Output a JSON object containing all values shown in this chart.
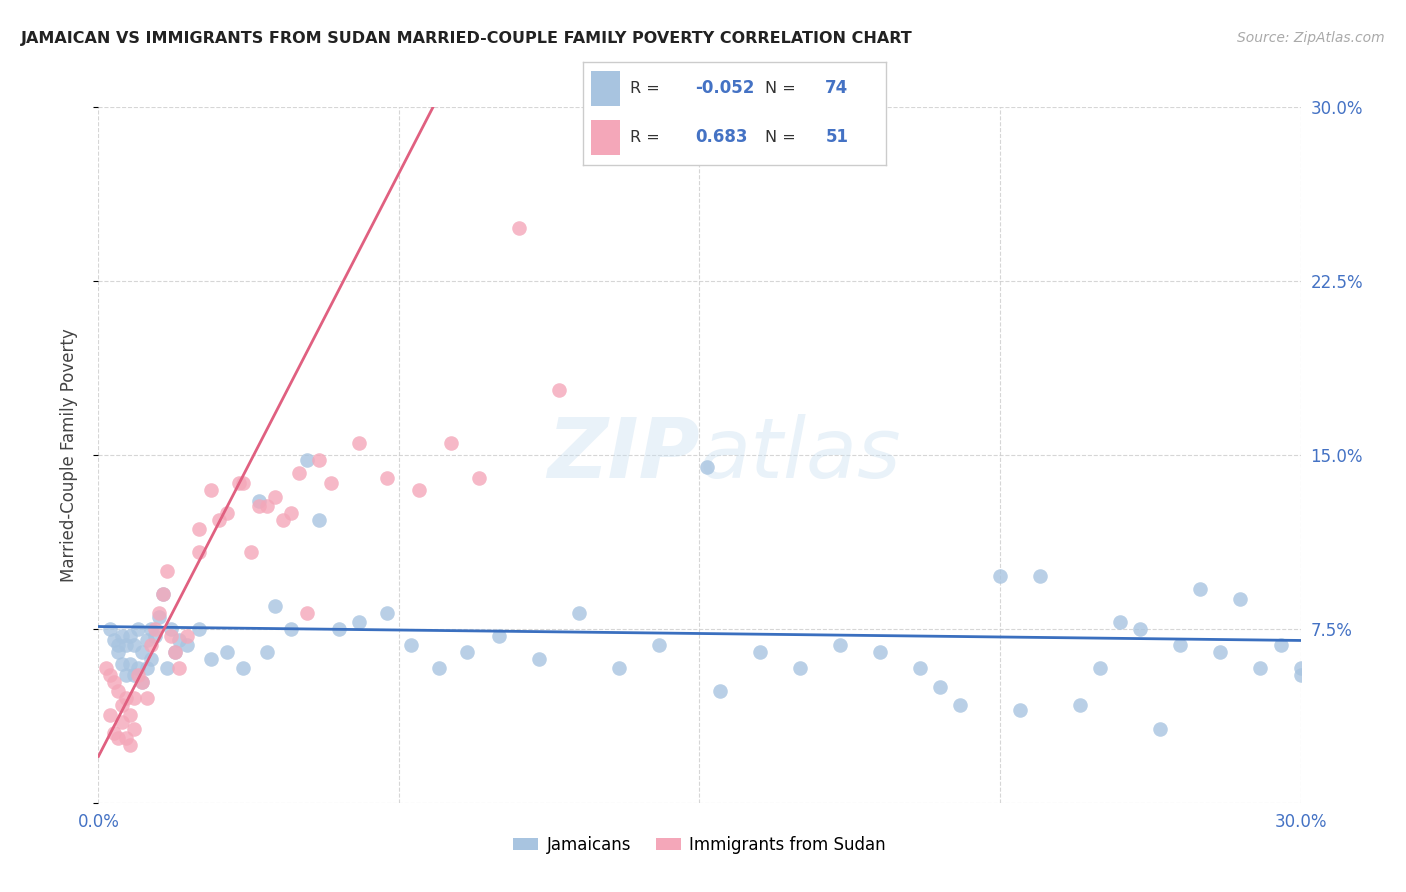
{
  "title": "JAMAICAN VS IMMIGRANTS FROM SUDAN MARRIED-COUPLE FAMILY POVERTY CORRELATION CHART",
  "source": "Source: ZipAtlas.com",
  "ylabel": "Married-Couple Family Poverty",
  "xlim": [
    0.0,
    0.3
  ],
  "ylim": [
    0.0,
    0.3
  ],
  "blue_R": -0.052,
  "blue_N": 74,
  "pink_R": 0.683,
  "pink_N": 51,
  "blue_color": "#a8c4e0",
  "pink_color": "#f4a7b9",
  "blue_line_color": "#3a6fbf",
  "pink_line_color": "#e06080",
  "axis_label_color": "#4472c4",
  "watermark_zip": "ZIP",
  "watermark_atlas": "atlas",
  "legend_label_blue": "Jamaicans",
  "legend_label_pink": "Immigrants from Sudan",
  "blue_x": [
    0.003,
    0.004,
    0.005,
    0.005,
    0.006,
    0.006,
    0.007,
    0.007,
    0.008,
    0.008,
    0.009,
    0.009,
    0.01,
    0.01,
    0.011,
    0.011,
    0.012,
    0.012,
    0.013,
    0.013,
    0.014,
    0.015,
    0.016,
    0.017,
    0.018,
    0.019,
    0.02,
    0.022,
    0.025,
    0.028,
    0.032,
    0.036,
    0.04,
    0.044,
    0.048,
    0.055,
    0.06,
    0.065,
    0.072,
    0.078,
    0.085,
    0.092,
    0.1,
    0.11,
    0.12,
    0.13,
    0.14,
    0.155,
    0.165,
    0.175,
    0.185,
    0.195,
    0.205,
    0.215,
    0.225,
    0.235,
    0.245,
    0.255,
    0.265,
    0.275,
    0.285,
    0.295,
    0.3,
    0.152,
    0.21,
    0.23,
    0.25,
    0.26,
    0.27,
    0.28,
    0.29,
    0.3,
    0.042,
    0.052
  ],
  "blue_y": [
    0.075,
    0.07,
    0.068,
    0.065,
    0.072,
    0.06,
    0.068,
    0.055,
    0.072,
    0.06,
    0.068,
    0.055,
    0.075,
    0.058,
    0.065,
    0.052,
    0.07,
    0.058,
    0.075,
    0.062,
    0.072,
    0.08,
    0.09,
    0.058,
    0.075,
    0.065,
    0.07,
    0.068,
    0.075,
    0.062,
    0.065,
    0.058,
    0.13,
    0.085,
    0.075,
    0.122,
    0.075,
    0.078,
    0.082,
    0.068,
    0.058,
    0.065,
    0.072,
    0.062,
    0.082,
    0.058,
    0.068,
    0.048,
    0.065,
    0.058,
    0.068,
    0.065,
    0.058,
    0.042,
    0.098,
    0.098,
    0.042,
    0.078,
    0.032,
    0.092,
    0.088,
    0.068,
    0.058,
    0.145,
    0.05,
    0.04,
    0.058,
    0.075,
    0.068,
    0.065,
    0.058,
    0.055,
    0.065,
    0.148
  ],
  "pink_x": [
    0.002,
    0.003,
    0.003,
    0.004,
    0.004,
    0.005,
    0.005,
    0.006,
    0.006,
    0.007,
    0.007,
    0.008,
    0.008,
    0.009,
    0.009,
    0.01,
    0.011,
    0.012,
    0.013,
    0.014,
    0.015,
    0.016,
    0.017,
    0.018,
    0.019,
    0.02,
    0.022,
    0.025,
    0.028,
    0.032,
    0.036,
    0.04,
    0.044,
    0.048,
    0.052,
    0.058,
    0.065,
    0.072,
    0.08,
    0.088,
    0.095,
    0.105,
    0.115,
    0.025,
    0.03,
    0.035,
    0.038,
    0.042,
    0.046,
    0.05,
    0.055
  ],
  "pink_y": [
    0.058,
    0.055,
    0.038,
    0.052,
    0.03,
    0.048,
    0.028,
    0.042,
    0.035,
    0.045,
    0.028,
    0.038,
    0.025,
    0.045,
    0.032,
    0.055,
    0.052,
    0.045,
    0.068,
    0.075,
    0.082,
    0.09,
    0.1,
    0.072,
    0.065,
    0.058,
    0.072,
    0.108,
    0.135,
    0.125,
    0.138,
    0.128,
    0.132,
    0.125,
    0.082,
    0.138,
    0.155,
    0.14,
    0.135,
    0.155,
    0.14,
    0.248,
    0.178,
    0.118,
    0.122,
    0.138,
    0.108,
    0.128,
    0.122,
    0.142,
    0.148
  ],
  "pink_line_x0": 0.0,
  "pink_line_y0": 0.02,
  "pink_line_x1": 0.085,
  "pink_line_y1": 0.305,
  "blue_line_x0": 0.0,
  "blue_line_y0": 0.076,
  "blue_line_x1": 0.3,
  "blue_line_y1": 0.07
}
